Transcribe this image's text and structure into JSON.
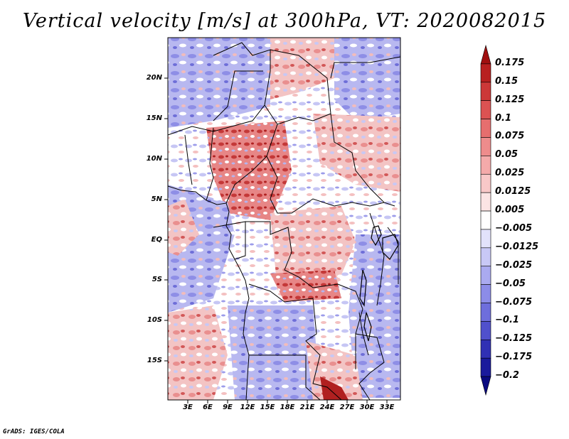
{
  "title": "Vertical velocity [m/s] at 300hPa, VT: 2020082015",
  "credit": "GrADS: IGES/COLA",
  "map": {
    "lat_labels": [
      "20N",
      "15N",
      "10N",
      "5N",
      "EQ",
      "5S",
      "10S",
      "15S"
    ],
    "lon_labels": [
      "3E",
      "6E",
      "9E",
      "12E",
      "15E",
      "18E",
      "21E",
      "24E",
      "27E",
      "30E",
      "33E"
    ],
    "lon_range": [
      0,
      35
    ],
    "lat_range": [
      -20,
      25
    ]
  },
  "colorbar": {
    "labels": [
      "0.175",
      "0.15",
      "0.125",
      "0.1",
      "0.075",
      "0.05",
      "0.025",
      "0.0125",
      "0.005",
      "−0.005",
      "−0.0125",
      "−0.025",
      "−0.05",
      "−0.075",
      "−0.1",
      "−0.125",
      "−0.175",
      "−0.2"
    ],
    "colors": [
      "#a01010",
      "#b82020",
      "#cc3838",
      "#dc5252",
      "#e66e6e",
      "#ee8c8c",
      "#f4aaaa",
      "#f8c8c8",
      "#fbe4e4",
      "#ffffff",
      "#e2e2fb",
      "#c8c8f6",
      "#aaaaf0",
      "#8c8ce8",
      "#6e6edc",
      "#5050cc",
      "#3030b4",
      "#1a1a9c",
      "#0a0a80"
    ]
  }
}
